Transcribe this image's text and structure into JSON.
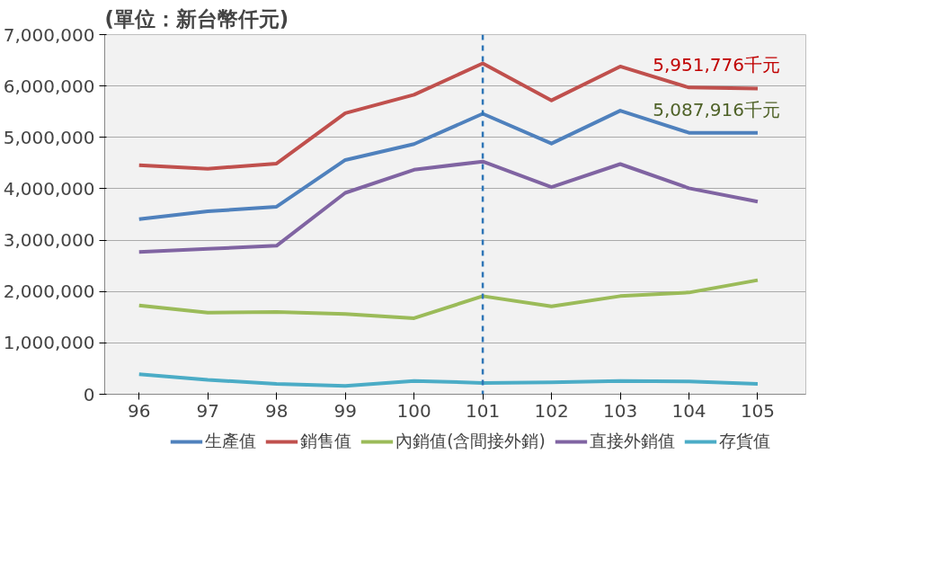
{
  "chart_data": {
    "type": "line",
    "title": "(單位：新台幣仟元)",
    "categories": [
      "96",
      "97",
      "98",
      "99",
      "100",
      "101",
      "102",
      "103",
      "104",
      "105"
    ],
    "series": [
      {
        "name": "生產值",
        "color": "#4f81bd",
        "values": [
          3410000,
          3560000,
          3650000,
          4560000,
          4870000,
          5460000,
          4880000,
          5520000,
          5090000,
          5087916
        ]
      },
      {
        "name": "銷售值",
        "color": "#c0504d",
        "values": [
          4460000,
          4390000,
          4490000,
          5470000,
          5830000,
          6440000,
          5720000,
          6380000,
          5970000,
          5951776
        ]
      },
      {
        "name": "內銷值(含間接外銷)",
        "color": "#9bbb59",
        "values": [
          1730000,
          1590000,
          1600000,
          1560000,
          1480000,
          1910000,
          1710000,
          1910000,
          1980000,
          2220000
        ]
      },
      {
        "name": "直接外銷值",
        "color": "#8064a2",
        "values": [
          2770000,
          2830000,
          2890000,
          3920000,
          4370000,
          4530000,
          4030000,
          4480000,
          4010000,
          3750000
        ]
      },
      {
        "name": "存貨值",
        "color": "#4bacc6",
        "values": [
          390000,
          280000,
          200000,
          160000,
          260000,
          220000,
          230000,
          260000,
          250000,
          200000
        ]
      }
    ],
    "ylim": [
      0,
      7000000
    ],
    "yticks": [
      {
        "value": 0,
        "label": "0"
      },
      {
        "value": 1000000,
        "label": "1,000,000"
      },
      {
        "value": 2000000,
        "label": "2,000,000"
      },
      {
        "value": 3000000,
        "label": "3,000,000"
      },
      {
        "value": 4000000,
        "label": "4,000,000"
      },
      {
        "value": 5000000,
        "label": "5,000,000"
      },
      {
        "value": 6000000,
        "label": "6,000,000"
      },
      {
        "value": 7000000,
        "label": "7,000,000"
      }
    ],
    "grid": "y",
    "legend": "bottom",
    "marker": "none",
    "line_style": "solid",
    "ref_lines": [
      {
        "axis": "x",
        "value": "101",
        "label": null,
        "color": "#2e75b6",
        "line_style": "dashed"
      }
    ],
    "annotations": [
      {
        "text": "5,951,776千元",
        "x": "105",
        "y": 5951776
      },
      {
        "text": "5,087,916千元",
        "x": "105",
        "y": 5087916
      }
    ]
  }
}
